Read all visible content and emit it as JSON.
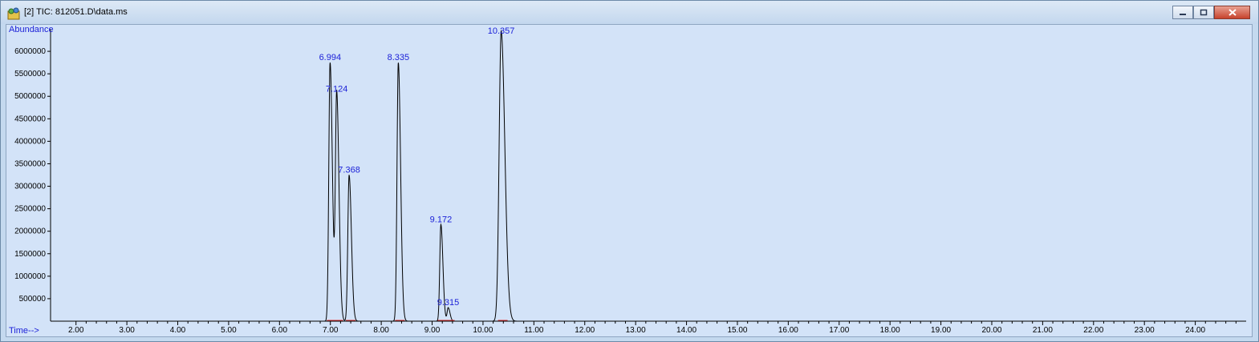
{
  "window": {
    "title": "[2] TIC: 812051.D\\data.ms",
    "buttons": [
      "minimize-icon",
      "restore-icon",
      "close-icon"
    ]
  },
  "colors": {
    "trace": "#000000",
    "label": "#1d22d8",
    "baseline_marks": "#e03030",
    "plot_bg": "#d3e3f8"
  },
  "chart_data": {
    "type": "line",
    "ylabel": "Abundance",
    "xlabel": "Time-->",
    "xlim": [
      1.5,
      25.0
    ],
    "ylim": [
      0,
      6500000
    ],
    "yticks": [
      500000,
      1000000,
      1500000,
      2000000,
      2500000,
      3000000,
      3500000,
      4000000,
      4500000,
      5000000,
      5500000,
      6000000
    ],
    "ytick_labels": [
      "500000",
      "1000000",
      "1500000",
      "2000000",
      "2500000",
      "3000000",
      "3500000",
      "4000000",
      "4500000",
      "5000000",
      "5500000",
      "6000000"
    ],
    "xticks": [
      2,
      3,
      4,
      5,
      6,
      7,
      8,
      9,
      10,
      11,
      12,
      13,
      14,
      15,
      16,
      17,
      18,
      19,
      20,
      21,
      22,
      23,
      24
    ],
    "xtick_labels": [
      "2.00",
      "3.00",
      "4.00",
      "5.00",
      "6.00",
      "7.00",
      "8.00",
      "9.00",
      "10.00",
      "11.00",
      "12.00",
      "13.00",
      "14.00",
      "15.00",
      "16.00",
      "17.00",
      "18.00",
      "19.00",
      "20.00",
      "21.00",
      "22.00",
      "23.00",
      "24.00"
    ],
    "peaks": [
      {
        "rt": 6.994,
        "label": "6.994",
        "height": 5750000,
        "width": 0.025
      },
      {
        "rt": 7.124,
        "label": "7.124",
        "height": 5050000,
        "width": 0.025
      },
      {
        "rt": 7.368,
        "label": "7.368",
        "height": 3250000,
        "width": 0.025
      },
      {
        "rt": 8.335,
        "label": "8.335",
        "height": 5750000,
        "width": 0.025
      },
      {
        "rt": 9.172,
        "label": "9.172",
        "height": 2150000,
        "width": 0.022
      },
      {
        "rt": 9.315,
        "label": "9.315",
        "height": 300000,
        "width": 0.02
      },
      {
        "rt": 10.357,
        "label": "10.357",
        "height": 6450000,
        "width": 0.04
      }
    ]
  }
}
